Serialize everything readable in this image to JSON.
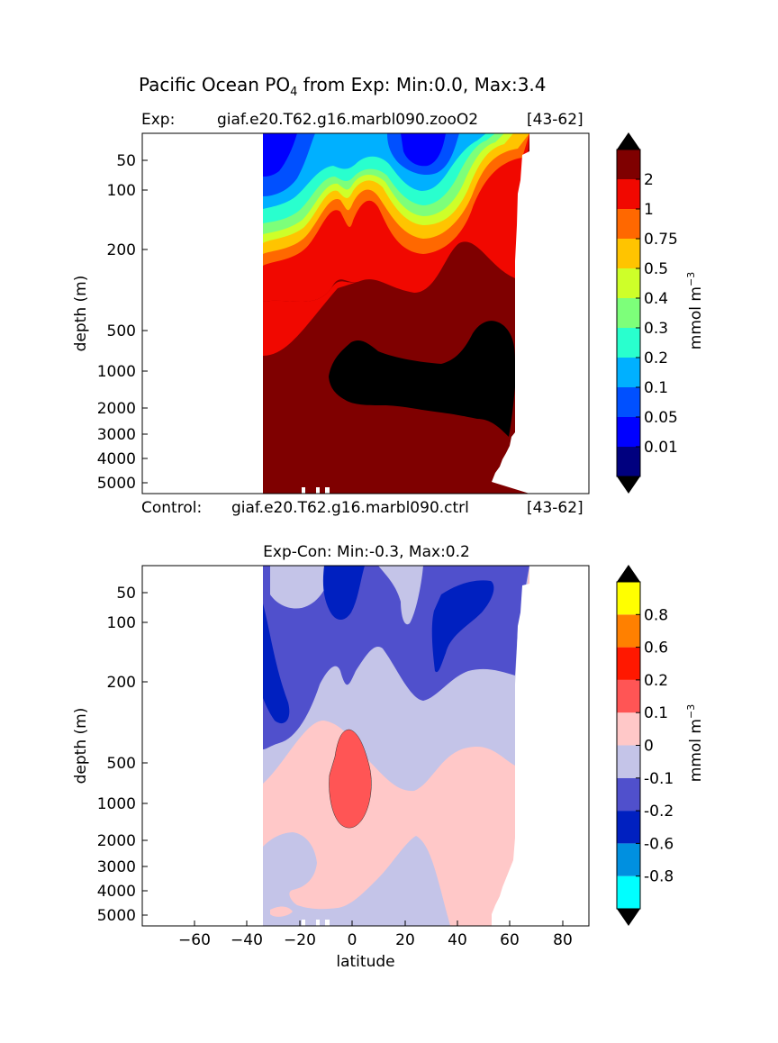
{
  "title": {
    "main": "Pacific Ocean PO",
    "sub": "4",
    "rest": " from Exp: Min:0.0, Max:3.4"
  },
  "exp_label": {
    "left": "Exp:",
    "name": "giaf.e20.T62.g16.marbl090.zooO2",
    "range": "[43-62]"
  },
  "control_label": {
    "left": "Control:",
    "name": "giaf.e20.T62.g16.marbl090.ctrl",
    "range": "[43-62]"
  },
  "chart_data": [
    {
      "type": "heatmap",
      "title": "",
      "xlabel": "",
      "ylabel": "depth (m)",
      "xlim": [
        -80,
        90
      ],
      "ylim": [
        5500,
        0
      ],
      "y_scale": "nonlinear (depth)",
      "yticks": [
        "50",
        "100",
        "200",
        "500",
        "1000",
        "2000",
        "3000",
        "4000",
        "5000"
      ],
      "colorbar": {
        "label": "mmol m",
        "label_sup": "−3",
        "extend": "both",
        "levels": [
          "0.01",
          "0.05",
          "0.1",
          "0.2",
          "0.3",
          "0.4",
          "0.5",
          "0.75",
          "1",
          "2"
        ],
        "colors": [
          "#00007f",
          "#0000ff",
          "#0050ff",
          "#00b0ff",
          "#29ffce",
          "#7dff7a",
          "#ceff29",
          "#ffc400",
          "#ff6800",
          "#f10800",
          "#7f0000"
        ],
        "under_color": "#000000",
        "over_color": "#000000"
      },
      "data_extent": {
        "lat_min": -34,
        "lat_max": 67
      },
      "grid": false
    },
    {
      "type": "heatmap",
      "title": "Exp-Con: Min:-0.3, Max:0.2",
      "xlabel": "latitude",
      "ylabel": "depth (m)",
      "xlim": [
        -80,
        90
      ],
      "ylim": [
        5500,
        0
      ],
      "y_scale": "nonlinear (depth)",
      "xticks": [
        "−60",
        "−40",
        "−20",
        "0",
        "20",
        "40",
        "60",
        "80"
      ],
      "yticks": [
        "50",
        "100",
        "200",
        "500",
        "1000",
        "2000",
        "3000",
        "4000",
        "5000"
      ],
      "colorbar": {
        "label": "mmol m",
        "label_sup": "−3",
        "extend": "both",
        "levels": [
          "-0.8",
          "-0.6",
          "-0.2",
          "-0.1",
          "0",
          "0.1",
          "0.2",
          "0.6",
          "0.8"
        ],
        "colors": [
          "#00ffff",
          "#0090e0",
          "#0020c0",
          "#5050cc",
          "#c4c4e8",
          "#ffc8c8",
          "#ff5555",
          "#ff1800",
          "#ff8000",
          "#ffff00"
        ],
        "under_color": "#000000",
        "over_color": "#000000"
      },
      "grid": false
    }
  ]
}
